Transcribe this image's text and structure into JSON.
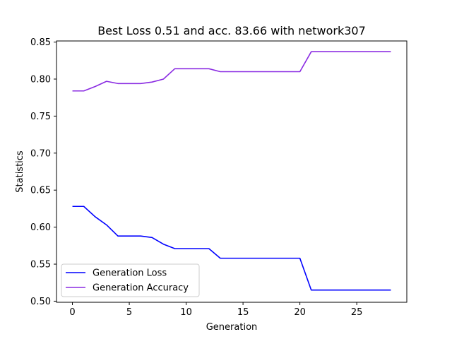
{
  "chart_data": {
    "type": "line",
    "title": "Best Loss 0.51 and acc. 83.66 with network307",
    "xlabel": "Generation",
    "ylabel": "Statistics",
    "xlim": [
      -1.4,
      29.4
    ],
    "ylim": [
      0.4985,
      0.8515
    ],
    "x_ticks": [
      0,
      5,
      10,
      15,
      20,
      25
    ],
    "y_ticks": [
      0.5,
      0.55,
      0.6,
      0.65,
      0.7,
      0.75,
      0.8,
      0.85
    ],
    "grid": false,
    "legend_position": "lower-left",
    "x": [
      0,
      1,
      2,
      3,
      4,
      5,
      6,
      7,
      8,
      9,
      10,
      11,
      12,
      13,
      14,
      15,
      16,
      17,
      18,
      19,
      20,
      21,
      22,
      23,
      24,
      25,
      26,
      27,
      28
    ],
    "series": [
      {
        "name": "Generation Loss",
        "color": "#0000ff",
        "values": [
          0.628,
          0.628,
          0.614,
          0.603,
          0.588,
          0.588,
          0.588,
          0.586,
          0.577,
          0.571,
          0.571,
          0.571,
          0.571,
          0.558,
          0.558,
          0.558,
          0.558,
          0.558,
          0.558,
          0.558,
          0.558,
          0.515,
          0.515,
          0.515,
          0.515,
          0.515,
          0.515,
          0.515,
          0.515
        ]
      },
      {
        "name": "Generation Accuracy",
        "color": "#8a2be2",
        "values": [
          0.784,
          0.784,
          0.79,
          0.797,
          0.794,
          0.794,
          0.794,
          0.796,
          0.8,
          0.814,
          0.814,
          0.814,
          0.814,
          0.81,
          0.81,
          0.81,
          0.81,
          0.81,
          0.81,
          0.81,
          0.81,
          0.837,
          0.837,
          0.837,
          0.837,
          0.837,
          0.837,
          0.837,
          0.837
        ]
      }
    ]
  }
}
